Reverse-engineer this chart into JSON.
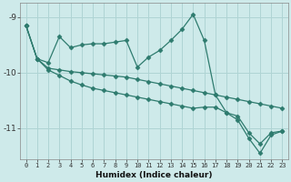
{
  "xlabel": "Humidex (Indice chaleur)",
  "ylabel": "",
  "bg_color": "#ceeaea",
  "grid_color": "#afd4d4",
  "line_color": "#2e7b6e",
  "xlim": [
    -0.5,
    23.5
  ],
  "ylim": [
    -11.55,
    -8.75
  ],
  "yticks": [
    -11,
    -10,
    -9
  ],
  "xticks": [
    0,
    1,
    2,
    3,
    4,
    5,
    6,
    7,
    8,
    9,
    10,
    11,
    12,
    13,
    14,
    15,
    16,
    17,
    18,
    19,
    20,
    21,
    22,
    23
  ],
  "series1_zigzag": [
    [
      0,
      -9.15
    ],
    [
      1,
      -9.75
    ],
    [
      2,
      -9.82
    ],
    [
      3,
      -9.35
    ],
    [
      4,
      -9.55
    ],
    [
      5,
      -9.5
    ],
    [
      6,
      -9.48
    ],
    [
      7,
      -9.48
    ],
    [
      8,
      -9.45
    ],
    [
      9,
      -9.42
    ],
    [
      10,
      -9.9
    ],
    [
      11,
      -9.72
    ],
    [
      12,
      -9.6
    ],
    [
      13,
      -9.42
    ],
    [
      14,
      -9.22
    ],
    [
      15,
      -8.95
    ],
    [
      16,
      -9.42
    ],
    [
      17,
      -10.4
    ],
    [
      18,
      -10.72
    ],
    [
      19,
      -10.85
    ],
    [
      20,
      -11.18
    ],
    [
      21,
      -11.45
    ],
    [
      22,
      -11.12
    ],
    [
      23,
      -11.05
    ]
  ],
  "series2_upper_envelope": [
    [
      0,
      -9.15
    ],
    [
      1,
      -9.75
    ],
    [
      2,
      -9.92
    ],
    [
      3,
      -9.95
    ],
    [
      4,
      -9.98
    ],
    [
      5,
      -10.0
    ],
    [
      6,
      -10.02
    ],
    [
      7,
      -10.04
    ],
    [
      8,
      -10.06
    ],
    [
      9,
      -10.08
    ],
    [
      10,
      -10.12
    ],
    [
      11,
      -10.16
    ],
    [
      12,
      -10.2
    ],
    [
      13,
      -10.24
    ],
    [
      14,
      -10.28
    ],
    [
      15,
      -10.32
    ],
    [
      16,
      -10.36
    ],
    [
      17,
      -10.4
    ],
    [
      18,
      -10.44
    ],
    [
      19,
      -10.48
    ],
    [
      20,
      -10.52
    ],
    [
      21,
      -10.56
    ],
    [
      22,
      -10.6
    ],
    [
      23,
      -10.64
    ]
  ],
  "series3_lower_envelope": [
    [
      0,
      -9.15
    ],
    [
      1,
      -9.75
    ],
    [
      2,
      -9.95
    ],
    [
      3,
      -10.05
    ],
    [
      4,
      -10.15
    ],
    [
      5,
      -10.22
    ],
    [
      6,
      -10.28
    ],
    [
      7,
      -10.32
    ],
    [
      8,
      -10.36
    ],
    [
      9,
      -10.4
    ],
    [
      10,
      -10.44
    ],
    [
      11,
      -10.48
    ],
    [
      12,
      -10.52
    ],
    [
      13,
      -10.56
    ],
    [
      14,
      -10.6
    ],
    [
      15,
      -10.64
    ],
    [
      16,
      -10.62
    ],
    [
      17,
      -10.62
    ],
    [
      18,
      -10.72
    ],
    [
      19,
      -10.78
    ],
    [
      20,
      -11.08
    ],
    [
      21,
      -11.28
    ],
    [
      22,
      -11.08
    ],
    [
      23,
      -11.05
    ]
  ]
}
